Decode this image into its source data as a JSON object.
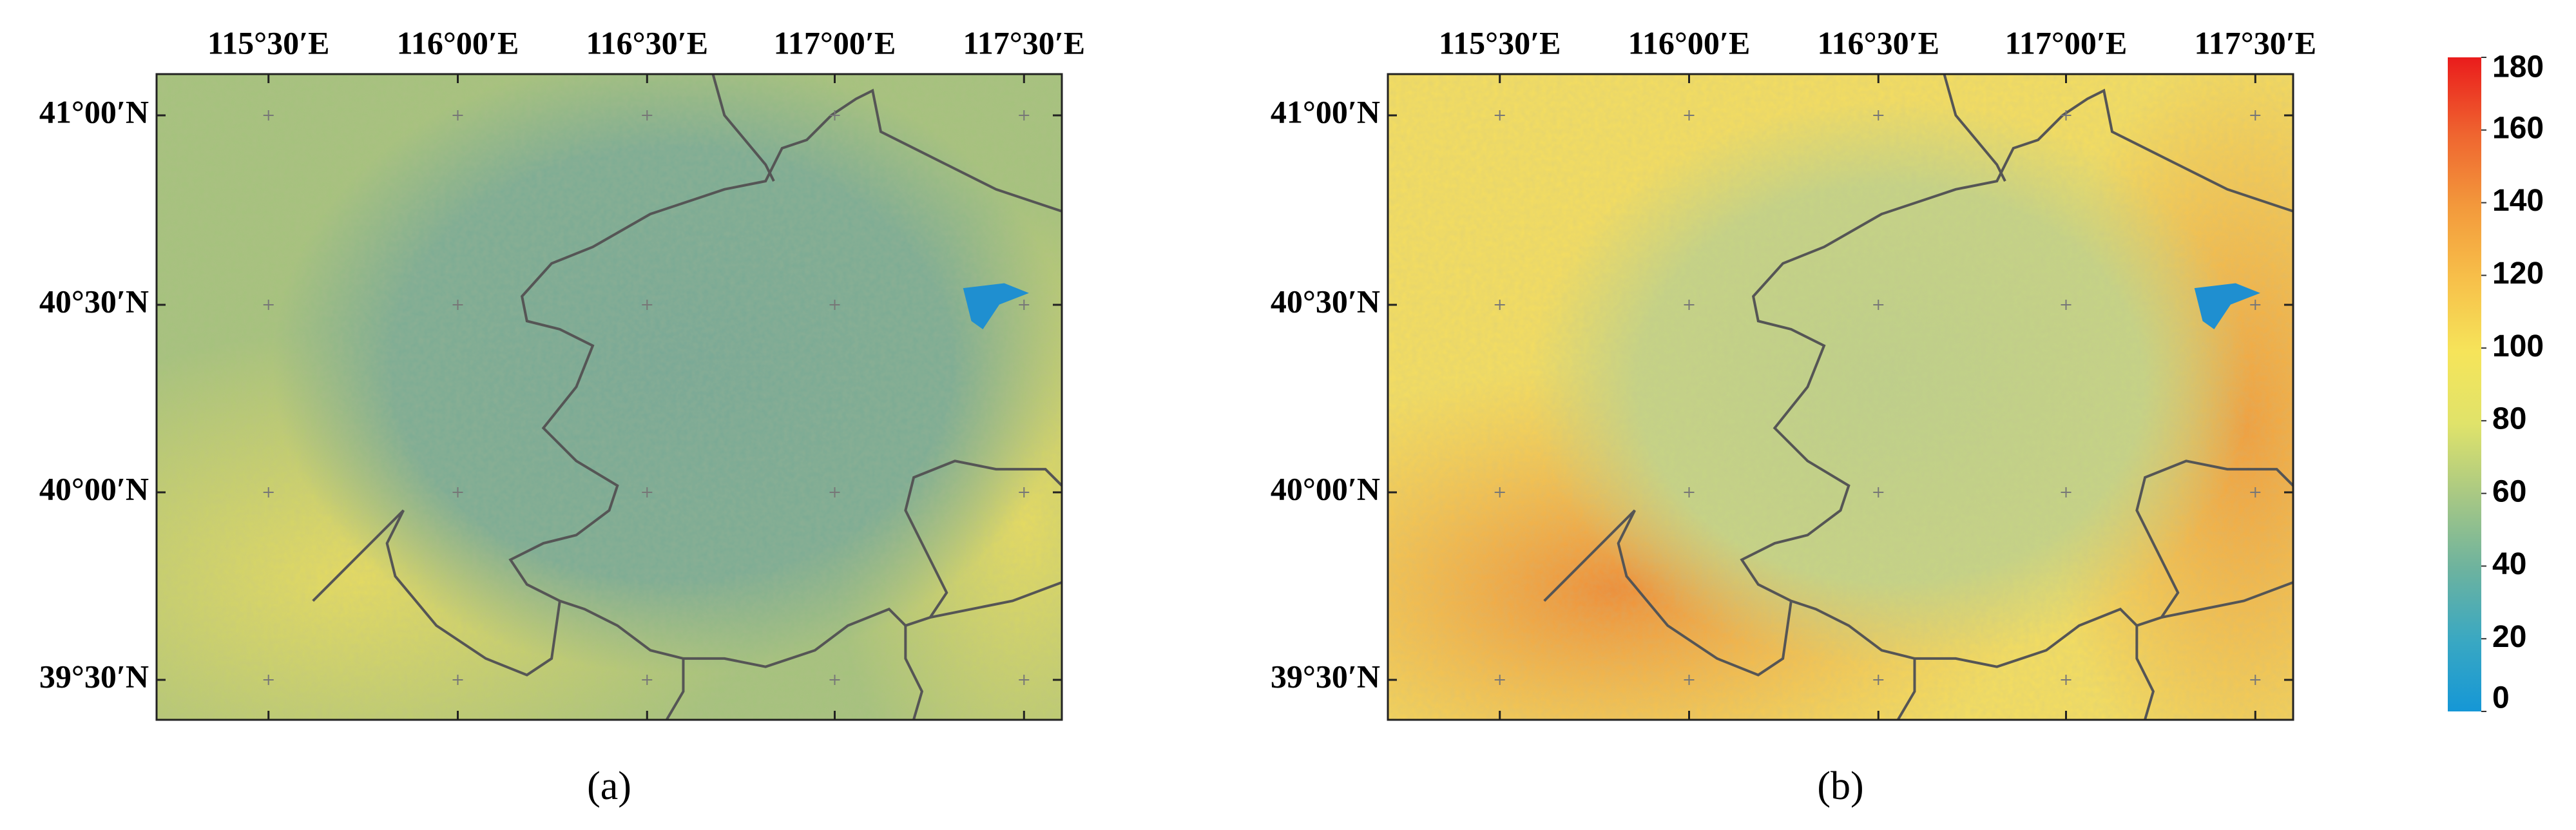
{
  "panels": [
    {
      "label": "(a)"
    },
    {
      "label": "(b)"
    }
  ],
  "lon_labels": [
    "115°30′E",
    "116°00′E",
    "116°30′E",
    "117°00′E",
    "117°30′E"
  ],
  "lat_labels": [
    "41°00′N",
    "40°30′N",
    "40°00′N",
    "39°30′N"
  ],
  "colorbar": {
    "range": [
      0,
      180
    ],
    "ticks": [
      0,
      20,
      40,
      60,
      80,
      100,
      120,
      140,
      160,
      180
    ]
  }
}
